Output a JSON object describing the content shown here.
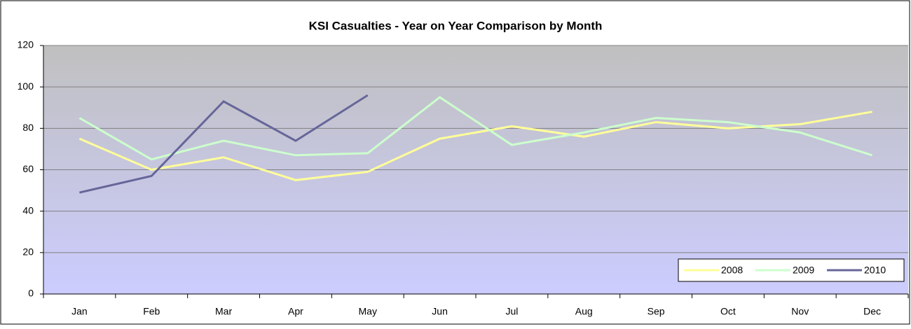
{
  "chart_data": {
    "type": "line",
    "title": "KSI Casualties - Year on Year Comparison by Month",
    "categories": [
      "Jan",
      "Feb",
      "Mar",
      "Apr",
      "May",
      "Jun",
      "Jul",
      "Aug",
      "Sep",
      "Oct",
      "Nov",
      "Dec"
    ],
    "series": [
      {
        "name": "2008",
        "color": "#ffff99",
        "values": [
          75,
          60,
          66,
          55,
          59,
          75,
          81,
          76,
          83,
          80,
          82,
          88
        ]
      },
      {
        "name": "2009",
        "color": "#ccffcc",
        "values": [
          85,
          65,
          74,
          67,
          68,
          95,
          72,
          78,
          85,
          83,
          78,
          67
        ]
      },
      {
        "name": "2010",
        "color": "#666699",
        "values": [
          49,
          57,
          93,
          74,
          96,
          null,
          null,
          null,
          null,
          null,
          null,
          null
        ]
      }
    ],
    "ylim": [
      0,
      120
    ],
    "yticks": [
      0,
      20,
      40,
      60,
      80,
      100,
      120
    ],
    "grid": true,
    "legend": "bottom-right"
  }
}
